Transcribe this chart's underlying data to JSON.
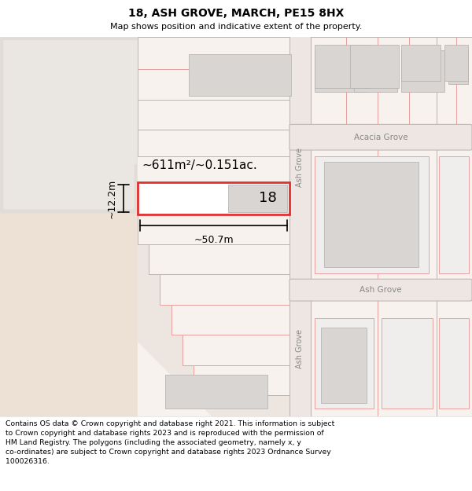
{
  "title": "18, ASH GROVE, MARCH, PE15 8HX",
  "subtitle": "Map shows position and indicative extent of the property.",
  "footer_text": "Contains OS data © Crown copyright and database right 2021. This information is subject\nto Crown copyright and database rights 2023 and is reproduced with the permission of\nHM Land Registry. The polygons (including the associated geometry, namely x, y\nco-ordinates) are subject to Crown copyright and database rights 2023 Ordnance Survey\n100026316.",
  "red_line": "#e03030",
  "light_red_line": "#e8a0a0",
  "area_text": "~611m²/~0.151ac.",
  "width_text": "~50.7m",
  "height_text": "~12.2m",
  "number_text": "18",
  "acacia_grove_label": "Acacia Grove",
  "ash_grove_label1": "Ash Grove",
  "ash_grove_label2": "Ash Grove",
  "bg_beige": "#ede0d5",
  "bg_light_beige": "#f2e8e0",
  "bg_white_plot": "#f8f2ee",
  "bg_gray1": "#e8e4e0",
  "bg_gray2": "#d8d4d0",
  "road_color": "#e8e0dc",
  "road_border": "#c8c0bc",
  "building_fill": "#d8d5d2",
  "building_border": "#b0aeac"
}
